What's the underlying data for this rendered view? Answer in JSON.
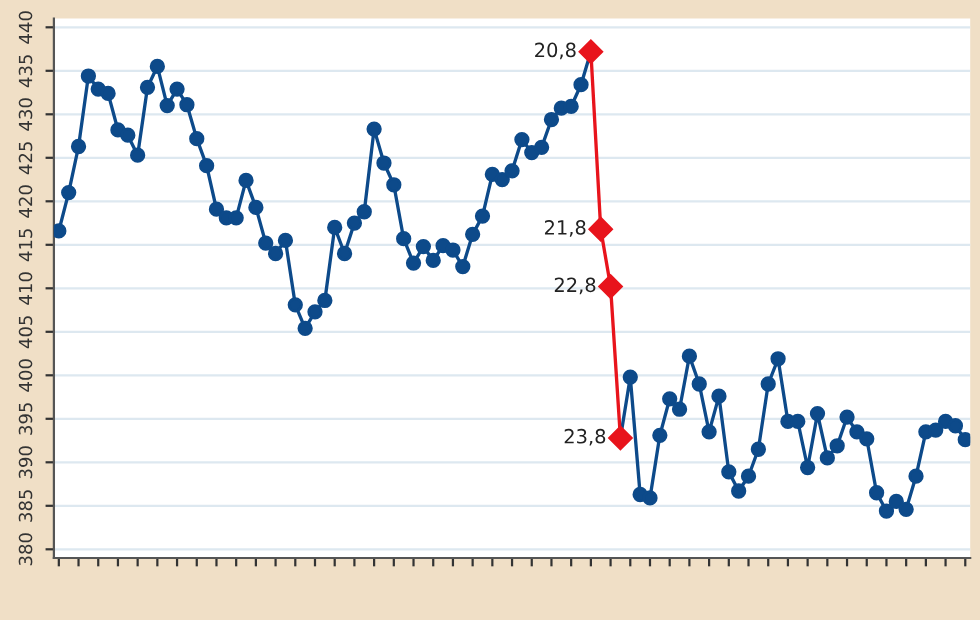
{
  "chart_data": {
    "type": "line",
    "categories": [
      null,
      null,
      null,
      null,
      null,
      null,
      null,
      null,
      null,
      null,
      null,
      null,
      null,
      null,
      null,
      null,
      null,
      null,
      null,
      null,
      null,
      null,
      null,
      null,
      null,
      null,
      null,
      null,
      null,
      null,
      null,
      null,
      null,
      null,
      null,
      null,
      null,
      null,
      null,
      null,
      null,
      null,
      null,
      null,
      null,
      null,
      null,
      null,
      null,
      null,
      null,
      null,
      null,
      null,
      null,
      null,
      null,
      null,
      null,
      null,
      null,
      null,
      null,
      null,
      null,
      null,
      null,
      null,
      null,
      null,
      null,
      null,
      null,
      null,
      null,
      null,
      null,
      null,
      null,
      null,
      null,
      null,
      null,
      null,
      null,
      null,
      null,
      null,
      null,
      null,
      null,
      null,
      null
    ],
    "series": [
      {
        "color": "#0d4a8a",
        "marker": "circle",
        "values": [
          416.6,
          421.0,
          426.3,
          434.4,
          432.9,
          432.4,
          428.2,
          427.6,
          425.3,
          433.1,
          435.5,
          431.0,
          432.9,
          431.1,
          427.2,
          424.1,
          419.1,
          418.1,
          418.1,
          422.4,
          419.3,
          415.2,
          414.0,
          415.5,
          408.1,
          405.4,
          407.3,
          408.6,
          417.0,
          414.0,
          417.5,
          418.8,
          428.3,
          424.4,
          421.9,
          415.7,
          412.9,
          414.8,
          413.2,
          414.9,
          414.4,
          412.5,
          416.2,
          418.3,
          423.1,
          422.5,
          423.5,
          427.1,
          425.6,
          426.2,
          429.4,
          430.7,
          430.9,
          433.4,
          437.2,
          null,
          null,
          null,
          null,
          null,
          null,
          null,
          null,
          null,
          null,
          null,
          null,
          null,
          null,
          null,
          null,
          null,
          null,
          null,
          null,
          null,
          null,
          null,
          null,
          null,
          null,
          null,
          null,
          null,
          null,
          null,
          null,
          null,
          null,
          null,
          null,
          null,
          null
        ]
      },
      {
        "color": "#e8141c",
        "marker": "diamond",
        "values": [
          null,
          null,
          null,
          null,
          null,
          null,
          null,
          null,
          null,
          null,
          null,
          null,
          null,
          null,
          null,
          null,
          null,
          null,
          null,
          null,
          null,
          null,
          null,
          null,
          null,
          null,
          null,
          null,
          null,
          null,
          null,
          null,
          null,
          null,
          null,
          null,
          null,
          null,
          null,
          null,
          null,
          null,
          null,
          null,
          null,
          null,
          null,
          null,
          null,
          null,
          null,
          null,
          null,
          null,
          437.2,
          416.8,
          410.2,
          392.8,
          null,
          null,
          null,
          null,
          null,
          null,
          null,
          null,
          null,
          null,
          null,
          null,
          null,
          null,
          null,
          null,
          null,
          null,
          null,
          null,
          null,
          null,
          null,
          null,
          null,
          null,
          null,
          null,
          null,
          null,
          null,
          null,
          null,
          null,
          null
        ]
      },
      {
        "color": "#0d4a8a",
        "marker": "circle",
        "values": [
          null,
          null,
          null,
          null,
          null,
          null,
          null,
          null,
          null,
          null,
          null,
          null,
          null,
          null,
          null,
          null,
          null,
          null,
          null,
          null,
          null,
          null,
          null,
          null,
          null,
          null,
          null,
          null,
          null,
          null,
          null,
          null,
          null,
          null,
          null,
          null,
          null,
          null,
          null,
          null,
          null,
          null,
          null,
          null,
          null,
          null,
          null,
          null,
          null,
          null,
          null,
          null,
          null,
          null,
          null,
          null,
          null,
          392.8,
          399.8,
          386.3,
          385.9,
          393.1,
          397.3,
          396.1,
          402.2,
          399.0,
          393.5,
          397.6,
          388.9,
          386.7,
          388.4,
          391.5,
          399.0,
          401.9,
          394.7,
          394.7,
          389.4,
          395.6,
          390.5,
          391.9,
          395.2,
          393.5,
          392.7,
          386.5,
          384.4,
          385.5,
          384.6,
          388.4,
          393.5,
          393.7,
          394.7,
          394.2,
          392.6
        ]
      }
    ],
    "annotations": [
      "20,8",
      "21,8",
      "22,8",
      "23,8"
    ],
    "ylim": [
      379,
      441
    ],
    "yticks": [
      380,
      385,
      390,
      395,
      400,
      405,
      410,
      415,
      420,
      425,
      430,
      435,
      440
    ],
    "grid": "y",
    "tick_labels": "y",
    "line_style": "solid"
  }
}
